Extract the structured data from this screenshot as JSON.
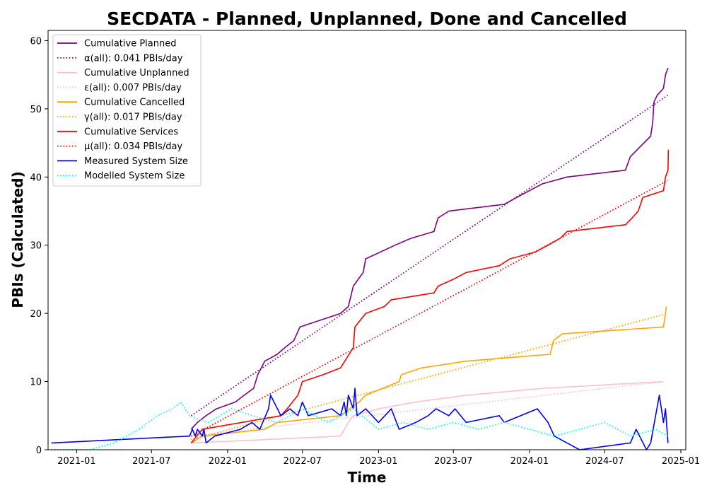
{
  "chart_data": {
    "type": "line",
    "title": "SECDATA - Planned, Unplanned, Done  and Cancelled",
    "xlabel": "Time",
    "ylabel": "PBIs (Calculated)",
    "xlim": [
      "2020-10-24",
      "2025-01-13"
    ],
    "ylim": [
      0,
      61.5
    ],
    "x_ticks": [
      "2021-01",
      "2021-07",
      "2022-01",
      "2022-07",
      "2023-01",
      "2023-07",
      "2024-01",
      "2024-07",
      "2025-01"
    ],
    "x_tick_dates": [
      "2021-01-01",
      "2021-07-01",
      "2022-01-01",
      "2022-07-01",
      "2023-01-01",
      "2023-07-01",
      "2024-01-01",
      "2024-07-01",
      "2025-01-01"
    ],
    "y_ticks": [
      0,
      10,
      20,
      30,
      40,
      50,
      60
    ],
    "grid": false,
    "legend_position": "top-left",
    "series": [
      {
        "name": "Cumulative Planned",
        "color": "#800080",
        "style": "solid",
        "points": [
          [
            "2021-10-05",
            3
          ],
          [
            "2021-10-20",
            4
          ],
          [
            "2021-11-10",
            5
          ],
          [
            "2021-12-05",
            6
          ],
          [
            "2022-01-20",
            7
          ],
          [
            "2022-02-10",
            8
          ],
          [
            "2022-03-05",
            9
          ],
          [
            "2022-03-15",
            11
          ],
          [
            "2022-04-01",
            13
          ],
          [
            "2022-05-01",
            14
          ],
          [
            "2022-05-20",
            15
          ],
          [
            "2022-06-10",
            16
          ],
          [
            "2022-06-25",
            18
          ],
          [
            "2022-10-01",
            20
          ],
          [
            "2022-10-20",
            21
          ],
          [
            "2022-11-01",
            24
          ],
          [
            "2022-11-25",
            26
          ],
          [
            "2022-12-01",
            28
          ],
          [
            "2023-02-10",
            30
          ],
          [
            "2023-03-20",
            31
          ],
          [
            "2023-05-15",
            32
          ],
          [
            "2023-05-25",
            34
          ],
          [
            "2023-06-20",
            35
          ],
          [
            "2023-11-01",
            36
          ],
          [
            "2023-12-01",
            37
          ],
          [
            "2024-02-01",
            39
          ],
          [
            "2024-04-01",
            40
          ],
          [
            "2024-08-20",
            41
          ],
          [
            "2024-09-01",
            43
          ],
          [
            "2024-10-20",
            46
          ],
          [
            "2024-10-25",
            48
          ],
          [
            "2024-10-28",
            51
          ],
          [
            "2024-11-05",
            52
          ],
          [
            "2024-11-20",
            53
          ],
          [
            "2024-11-25",
            55
          ],
          [
            "2024-12-01",
            56
          ]
        ]
      },
      {
        "name": "α(all): 0.041 PBIs/day",
        "color": "#800080",
        "style": "dotted",
        "points": [
          [
            "2021-10-05",
            5
          ],
          [
            "2024-12-01",
            52
          ]
        ]
      },
      {
        "name": "Cumulative Unplanned",
        "color": "#ffc0cb",
        "style": "solid",
        "points": [
          [
            "2021-10-05",
            1
          ],
          [
            "2022-10-01",
            2
          ],
          [
            "2022-10-20",
            4
          ],
          [
            "2022-11-01",
            5
          ],
          [
            "2023-01-01",
            6
          ],
          [
            "2023-04-01",
            7
          ],
          [
            "2023-08-01",
            8
          ],
          [
            "2024-02-01",
            9
          ],
          [
            "2024-11-20",
            10
          ]
        ]
      },
      {
        "name": "ε(all): 0.007 PBIs/day",
        "color": "#ffc0cb",
        "style": "dotted",
        "points": [
          [
            "2021-10-05",
            2
          ],
          [
            "2024-11-20",
            10
          ]
        ]
      },
      {
        "name": "Cumulative Cancelled",
        "color": "#ffa500",
        "style": "solid",
        "points": [
          [
            "2021-10-05",
            1
          ],
          [
            "2021-11-01",
            2
          ],
          [
            "2022-04-01",
            3
          ],
          [
            "2022-05-01",
            4
          ],
          [
            "2022-10-01",
            5
          ],
          [
            "2022-11-15",
            7
          ],
          [
            "2022-12-01",
            8
          ],
          [
            "2023-02-20",
            10
          ],
          [
            "2023-02-25",
            11
          ],
          [
            "2023-04-15",
            12
          ],
          [
            "2023-08-01",
            13
          ],
          [
            "2024-02-20",
            14
          ],
          [
            "2024-02-28",
            16
          ],
          [
            "2024-03-20",
            17
          ],
          [
            "2024-11-20",
            18
          ],
          [
            "2024-11-25",
            20
          ],
          [
            "2024-11-27",
            21
          ]
        ]
      },
      {
        "name": "γ(all): 0.017 PBIs/day",
        "color": "#ffa500",
        "style": "dotted",
        "points": [
          [
            "2021-10-05",
            1.5
          ],
          [
            "2024-12-01",
            20
          ]
        ]
      },
      {
        "name": "Cumulative Services",
        "color": "#ff0000",
        "style": "solid",
        "points": [
          [
            "2021-10-05",
            1
          ],
          [
            "2021-11-01",
            3
          ],
          [
            "2022-05-10",
            5
          ],
          [
            "2022-05-25",
            6
          ],
          [
            "2022-06-20",
            8
          ],
          [
            "2022-07-01",
            10
          ],
          [
            "2022-08-20",
            11
          ],
          [
            "2022-10-01",
            12
          ],
          [
            "2022-11-01",
            15
          ],
          [
            "2022-11-05",
            18
          ],
          [
            "2022-12-01",
            20
          ],
          [
            "2023-01-15",
            21
          ],
          [
            "2023-02-01",
            22
          ],
          [
            "2023-05-15",
            23
          ],
          [
            "2023-05-25",
            24
          ],
          [
            "2023-07-01",
            25
          ],
          [
            "2023-08-01",
            26
          ],
          [
            "2023-10-20",
            27
          ],
          [
            "2023-11-15",
            28
          ],
          [
            "2024-01-15",
            29
          ],
          [
            "2024-02-15",
            30
          ],
          [
            "2024-03-15",
            31
          ],
          [
            "2024-04-01",
            32
          ],
          [
            "2024-08-20",
            33
          ],
          [
            "2024-09-05",
            34
          ],
          [
            "2024-09-20",
            35
          ],
          [
            "2024-10-01",
            37
          ],
          [
            "2024-11-20",
            38
          ],
          [
            "2024-11-25",
            40
          ],
          [
            "2024-12-01",
            41
          ],
          [
            "2024-12-02",
            44
          ]
        ]
      },
      {
        "name": "μ(all): 0.034 PBIs/day",
        "color": "#ff0000",
        "style": "dotted",
        "points": [
          [
            "2021-10-05",
            2
          ],
          [
            "2024-12-01",
            39.5
          ]
        ]
      },
      {
        "name": "Measured System Size",
        "color": "#0000ff",
        "style": "solid",
        "points": [
          [
            "2020-11-01",
            1
          ],
          [
            "2021-10-01",
            2
          ],
          [
            "2021-10-08",
            3
          ],
          [
            "2021-10-15",
            2
          ],
          [
            "2021-10-20",
            3
          ],
          [
            "2021-11-01",
            2
          ],
          [
            "2021-11-05",
            3
          ],
          [
            "2021-11-10",
            1
          ],
          [
            "2021-12-01",
            2
          ],
          [
            "2022-02-01",
            3
          ],
          [
            "2022-03-01",
            4
          ],
          [
            "2022-03-20",
            3
          ],
          [
            "2022-04-10",
            6
          ],
          [
            "2022-04-15",
            8
          ],
          [
            "2022-05-10",
            5
          ],
          [
            "2022-06-01",
            6
          ],
          [
            "2022-06-20",
            5
          ],
          [
            "2022-07-01",
            7
          ],
          [
            "2022-07-15",
            5
          ],
          [
            "2022-09-10",
            6
          ],
          [
            "2022-10-01",
            5
          ],
          [
            "2022-10-10",
            7
          ],
          [
            "2022-10-15",
            5
          ],
          [
            "2022-10-20",
            8
          ],
          [
            "2022-11-01",
            6
          ],
          [
            "2022-11-05",
            9
          ],
          [
            "2022-11-10",
            5
          ],
          [
            "2022-12-01",
            6
          ],
          [
            "2023-01-01",
            4
          ],
          [
            "2023-02-01",
            6
          ],
          [
            "2023-02-20",
            3
          ],
          [
            "2023-04-01",
            4
          ],
          [
            "2023-05-01",
            5
          ],
          [
            "2023-05-20",
            6
          ],
          [
            "2023-06-20",
            5
          ],
          [
            "2023-07-05",
            6
          ],
          [
            "2023-08-01",
            4
          ],
          [
            "2023-10-20",
            5
          ],
          [
            "2023-11-01",
            4
          ],
          [
            "2024-01-20",
            6
          ],
          [
            "2024-02-15",
            4
          ],
          [
            "2024-03-01",
            2
          ],
          [
            "2024-04-01",
            1
          ],
          [
            "2024-05-01",
            0
          ],
          [
            "2024-09-01",
            1
          ],
          [
            "2024-09-15",
            3
          ],
          [
            "2024-10-10",
            0
          ],
          [
            "2024-10-20",
            1
          ],
          [
            "2024-11-01",
            5
          ],
          [
            "2024-11-10",
            8
          ],
          [
            "2024-11-20",
            4
          ],
          [
            "2024-11-25",
            6
          ],
          [
            "2024-12-01",
            1
          ]
        ]
      },
      {
        "name": "Modelled System Size",
        "color": "#00ffff",
        "style": "dotted",
        "points": [
          [
            "2020-11-01",
            0
          ],
          [
            "2021-02-01",
            0
          ],
          [
            "2021-04-01",
            1
          ],
          [
            "2021-06-01",
            3
          ],
          [
            "2021-07-15",
            5
          ],
          [
            "2021-08-20",
            6
          ],
          [
            "2021-09-10",
            7
          ],
          [
            "2021-10-01",
            5
          ],
          [
            "2021-11-15",
            4
          ],
          [
            "2022-01-10",
            6
          ],
          [
            "2022-03-01",
            5
          ],
          [
            "2022-05-01",
            4
          ],
          [
            "2022-07-01",
            6
          ],
          [
            "2022-09-01",
            4
          ],
          [
            "2022-11-01",
            6
          ],
          [
            "2023-01-01",
            3
          ],
          [
            "2023-03-01",
            4
          ],
          [
            "2023-05-01",
            3
          ],
          [
            "2023-07-01",
            4
          ],
          [
            "2023-09-01",
            3
          ],
          [
            "2023-11-01",
            4
          ],
          [
            "2024-01-01",
            3
          ],
          [
            "2024-03-01",
            2
          ],
          [
            "2024-05-01",
            3
          ],
          [
            "2024-07-01",
            4
          ],
          [
            "2024-09-01",
            2
          ],
          [
            "2024-11-01",
            3
          ],
          [
            "2024-12-01",
            2
          ]
        ]
      }
    ]
  }
}
